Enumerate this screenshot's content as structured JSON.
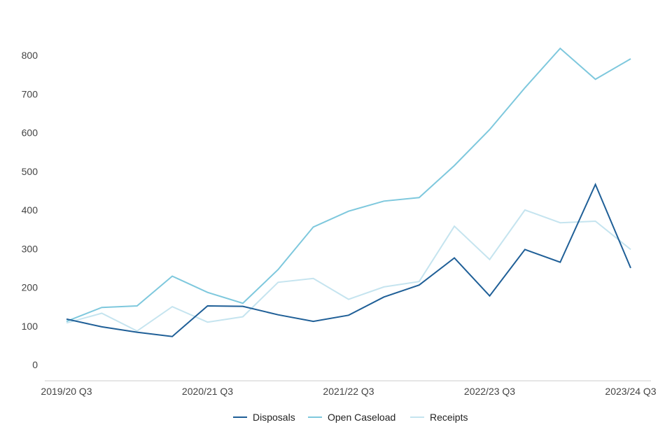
{
  "chart_data": {
    "type": "line",
    "title": "",
    "xlabel": "",
    "ylabel": "",
    "x": [
      "2019/20 Q3",
      "2019/20 Q4",
      "2020/21 Q1",
      "2020/21 Q2",
      "2020/21 Q3",
      "2020/21 Q4",
      "2021/22 Q1",
      "2021/22 Q2",
      "2021/22 Q3",
      "2021/22 Q4",
      "2022/23 Q1",
      "2022/23 Q2",
      "2022/23 Q3",
      "2022/23 Q4",
      "2023/24 Q1",
      "2023/24 Q2",
      "2023/24 Q3"
    ],
    "x_tick_labels": [
      "2019/20 Q3",
      "2020/21 Q3",
      "2021/22 Q3",
      "2022/23 Q3",
      "2023/24 Q3"
    ],
    "ylim": [
      0,
      800
    ],
    "y_ticks": [
      0,
      100,
      200,
      300,
      400,
      500,
      600,
      700,
      800
    ],
    "grid": false,
    "legend_position": "bottom-center",
    "series": [
      {
        "name": "Disposals",
        "color": "#1f5f97",
        "values": [
          118,
          98,
          84,
          73,
          152,
          151,
          129,
          112,
          128,
          175,
          206,
          276,
          178,
          298,
          265,
          466,
          250
        ]
      },
      {
        "name": "Open Caseload",
        "color": "#7ec8dd",
        "values": [
          112,
          148,
          152,
          229,
          187,
          159,
          246,
          356,
          397,
          423,
          432,
          515,
          608,
          716,
          818,
          738,
          791
        ]
      },
      {
        "name": "Receipts",
        "color": "#c5e4ef",
        "values": [
          108,
          133,
          87,
          150,
          110,
          124,
          213,
          223,
          169,
          201,
          215,
          358,
          272,
          400,
          367,
          371,
          298
        ]
      }
    ]
  }
}
